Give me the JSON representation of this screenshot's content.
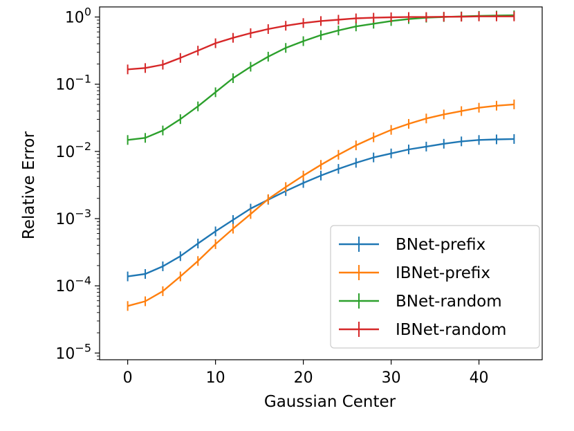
{
  "chart_data": {
    "type": "line",
    "title": "",
    "xlabel": "Gaussian Center",
    "ylabel": "Relative Error",
    "xlim": [
      -3.2,
      47.2
    ],
    "ylim_log10": [
      -5.1,
      0.15
    ],
    "yscale": "log",
    "grid": false,
    "legend_position": "lower-right",
    "x_ticks": [
      {
        "value": 0,
        "label": "0"
      },
      {
        "value": 10,
        "label": "10"
      },
      {
        "value": 20,
        "label": "20"
      },
      {
        "value": 30,
        "label": "30"
      },
      {
        "value": 40,
        "label": "40"
      }
    ],
    "y_ticks": [
      {
        "exp": 0,
        "base": "10",
        "sup": "0"
      },
      {
        "exp": -1,
        "base": "10",
        "sup": "−1"
      },
      {
        "exp": -2,
        "base": "10",
        "sup": "−2"
      },
      {
        "exp": -3,
        "base": "10",
        "sup": "−3"
      },
      {
        "exp": -4,
        "base": "10",
        "sup": "−4"
      },
      {
        "exp": -5,
        "base": "10",
        "sup": "−5"
      }
    ],
    "x": [
      0,
      2,
      4,
      6,
      8,
      10,
      12,
      14,
      16,
      18,
      20,
      22,
      24,
      26,
      28,
      30,
      32,
      34,
      36,
      38,
      40,
      42,
      44
    ],
    "series": [
      {
        "name": "BNet-prefix",
        "color": "#1f77b4",
        "values": [
          0.000138,
          0.00015,
          0.000195,
          0.000276,
          0.000426,
          0.000646,
          0.000955,
          0.00141,
          0.00191,
          0.00257,
          0.00339,
          0.00437,
          0.0055,
          0.00676,
          0.00813,
          0.00933,
          0.0107,
          0.0118,
          0.013,
          0.0141,
          0.0148,
          0.0151,
          0.0153
        ]
      },
      {
        "name": "IBNet-prefix",
        "color": "#ff7f0e",
        "values": [
          5.01e-05,
          5.89e-05,
          8.32e-05,
          0.000138,
          0.000234,
          0.000417,
          0.000708,
          0.00117,
          0.00195,
          0.00295,
          0.00437,
          0.00631,
          0.00891,
          0.0123,
          0.0162,
          0.0209,
          0.0257,
          0.0309,
          0.0355,
          0.0398,
          0.0447,
          0.0479,
          0.0501
        ]
      },
      {
        "name": "BNet-random",
        "color": "#2ca02c",
        "values": [
          0.0148,
          0.0159,
          0.0205,
          0.0302,
          0.0468,
          0.0759,
          0.123,
          0.182,
          0.257,
          0.347,
          0.437,
          0.537,
          0.631,
          0.724,
          0.794,
          0.871,
          0.933,
          0.977,
          1.0,
          1.02,
          1.04,
          1.05,
          1.06
        ]
      },
      {
        "name": "IBNet-random",
        "color": "#d62728",
        "values": [
          0.166,
          0.174,
          0.195,
          0.246,
          0.316,
          0.407,
          0.49,
          0.575,
          0.661,
          0.741,
          0.813,
          0.871,
          0.912,
          0.955,
          0.977,
          0.991,
          1.0,
          1.0,
          1.01,
          1.01,
          1.02,
          1.02,
          1.02
        ]
      }
    ]
  }
}
